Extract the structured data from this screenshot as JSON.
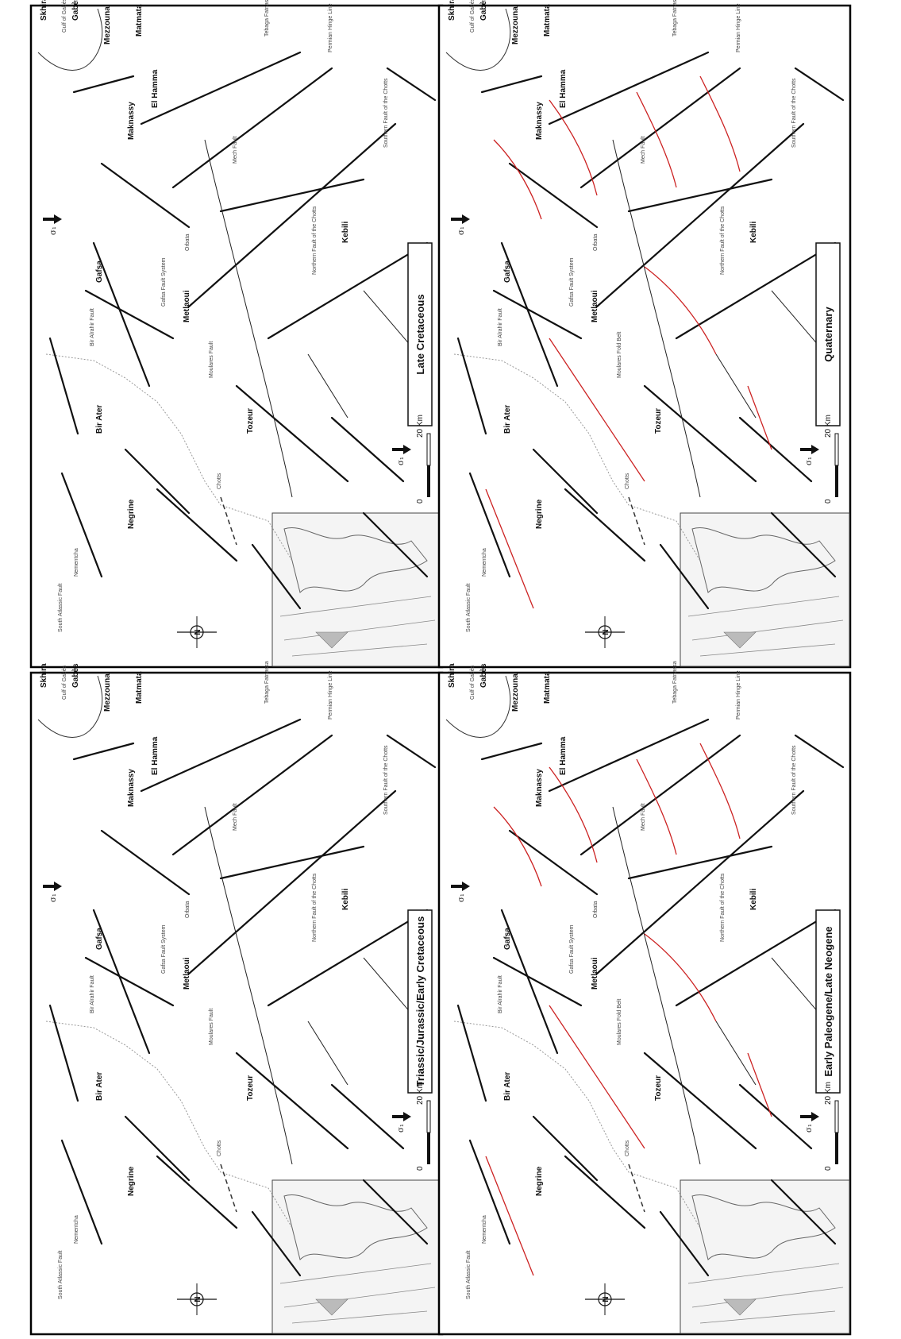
{
  "panels": [
    {
      "title": "Late Cretaceous",
      "rotated_structure_label": "Moulares Fault",
      "sigma_label": "σ₁",
      "scale_label": "20 Km",
      "scale_zero": "0",
      "north_label": "N",
      "fold_belts": false
    },
    {
      "title": "Triassic/Jurassic/Early Cretaceous",
      "rotated_structure_label": "Moulares Fault",
      "sigma_label": "σ₁",
      "scale_label": "20 Km",
      "scale_zero": "0",
      "north_label": "N",
      "fold_belts": false
    },
    {
      "title": "Quaternary",
      "rotated_structure_label": "Moulares Fold Belt",
      "sigma_label": "σ₁",
      "scale_label": "20 Km",
      "scale_zero": "0",
      "north_label": "N",
      "fold_belts": true
    },
    {
      "title": "Early Paleogene/Late Neogene",
      "rotated_structure_label": "Moulares Fold Belt",
      "sigma_label": "σ₁",
      "scale_label": "20 Km",
      "scale_zero": "0",
      "north_label": "N",
      "fold_belts": true
    }
  ],
  "places": {
    "skhira": "Skhira",
    "gabes": "Gabès",
    "matmata": "Matmata",
    "el_hamma": "El Hamma",
    "mezzouna": "Mezzouna",
    "maknassy": "Maknassy",
    "gafsa": "Gafsa",
    "metlaoui": "Metlaoui",
    "bir_ater": "Bir Ater",
    "negrine": "Negrine",
    "tozeur": "Tozeur",
    "kebili": "Kebili"
  },
  "structures": {
    "gulf_of_gabes": "Gulf of Gabès",
    "tebaga_fatnassa": "Tebaga Fatnassa",
    "southern_fault_chotts": "Southern Fault of the Chotts",
    "northern_fault_chotts": "Northern Fault of the Chotts",
    "permian_hinge_line": "Permian Hinge Line",
    "gafsa_fault_system": "Gafsa Fault System",
    "bir_alrahir_fault": "Bir Alrahir Fault",
    "south_atlassic_fault": "South Atlassic Fault",
    "chotts": "Chotts",
    "orbata": "Orbata",
    "mech_fault": "Mech Fault",
    "nementcha": "Nementcha"
  },
  "colors": {
    "fault": "#111111",
    "fold_axis": "#cc2222",
    "border": "#999999",
    "frame": "#000000"
  }
}
